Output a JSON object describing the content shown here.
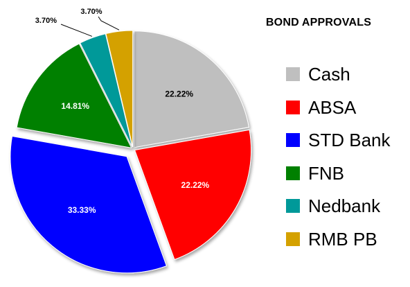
{
  "chart_data": {
    "type": "pie",
    "title": "BOND APPROVALS",
    "categories": [
      "Cash",
      "ABSA",
      "STD Bank",
      "FNB",
      "Nedbank",
      "RMB PB"
    ],
    "values": [
      22.22,
      22.22,
      33.33,
      14.81,
      3.7,
      3.7
    ],
    "data_labels": [
      "22.22%",
      "22.22%",
      "33.33%",
      "14.81%",
      "3.70%",
      "3.70%"
    ],
    "colors": [
      "#BFBFBF",
      "#FF0000",
      "#0000FF",
      "#008000",
      "#009999",
      "#D4A100"
    ],
    "label_colors": [
      "#000000",
      "#FFFFFF",
      "#FFFFFF",
      "#FFFFFF",
      "#000000",
      "#000000"
    ],
    "exploded": [
      "STD Bank"
    ],
    "legend_position": "right"
  }
}
